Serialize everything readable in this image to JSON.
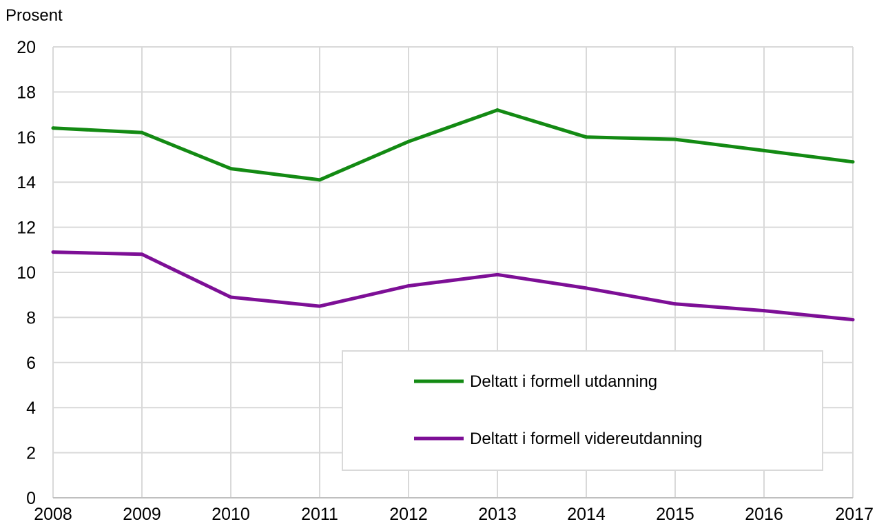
{
  "chart_data": {
    "type": "line",
    "ylabel": "Prosent",
    "xlabel": "",
    "x": [
      "2008",
      "2009",
      "2010",
      "2011",
      "2012",
      "2013",
      "2014",
      "2015",
      "2016",
      "2017"
    ],
    "ylim": [
      0,
      20
    ],
    "yticks": [
      0,
      2,
      4,
      6,
      8,
      10,
      12,
      14,
      16,
      18,
      20
    ],
    "grid": true,
    "legend_position": "bottom-right",
    "series": [
      {
        "name": "Deltatt i formell utdanning",
        "color": "#138a13",
        "values": [
          16.4,
          16.2,
          14.6,
          14.1,
          15.8,
          17.2,
          16.0,
          15.9,
          15.4,
          14.9
        ]
      },
      {
        "name": "Deltatt i formell videreutdanning",
        "color": "#7d0f96",
        "values": [
          10.9,
          10.8,
          8.9,
          8.5,
          9.4,
          9.9,
          9.3,
          8.6,
          8.3,
          7.9
        ]
      }
    ]
  }
}
